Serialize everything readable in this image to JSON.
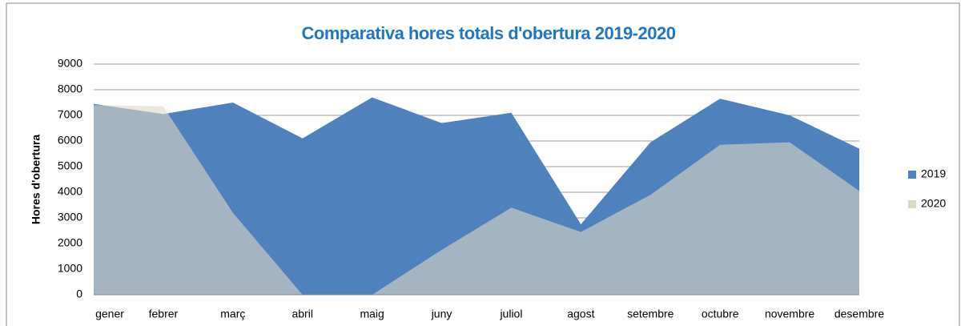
{
  "chart_data": {
    "type": "area",
    "title": "Comparativa hores totals d'obertura 2019-2020",
    "y_label": "Hores d'obertura",
    "categories": [
      "gener",
      "febrer",
      "març",
      "abril",
      "maig",
      "juny",
      "juliol",
      "agost",
      "setembre",
      "octubre",
      "novembre",
      "desembre"
    ],
    "series": [
      {
        "name": "2019",
        "color": "#4f81bd",
        "values": [
          7450,
          7050,
          7500,
          6100,
          7700,
          6700,
          7100,
          2750,
          5950,
          7650,
          7000,
          5700
        ]
      },
      {
        "name": "2020",
        "color": "#ddd9c3",
        "values": [
          7400,
          7350,
          3200,
          0,
          0,
          1750,
          3400,
          2450,
          3900,
          5850,
          5950,
          4050
        ]
      }
    ],
    "ylim": [
      0,
      9000
    ],
    "yticks": [
      0,
      1000,
      2000,
      3000,
      4000,
      5000,
      6000,
      7000,
      8000,
      9000
    ],
    "grid": true,
    "legend": "right"
  }
}
